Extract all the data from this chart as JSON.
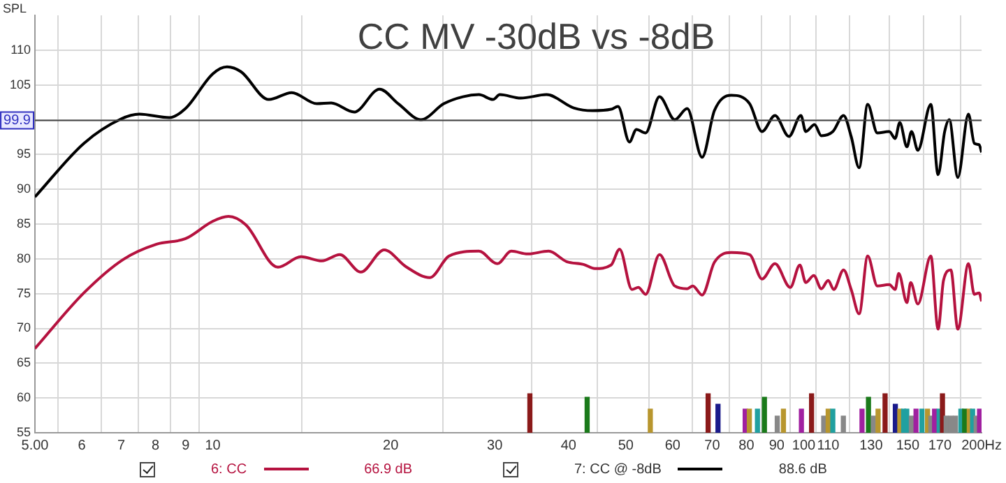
{
  "chart_data": {
    "type": "line",
    "title": "CC MV -30dB vs -8dB",
    "ylabel": "SPL",
    "log": "x",
    "grid": true,
    "legend": "bottom",
    "marker": "none",
    "line_style": "solid",
    "xlim": [
      5,
      200
    ],
    "ylim": [
      55,
      115
    ],
    "xticks": [
      {
        "value": 5,
        "label": "5.00"
      },
      6,
      7,
      8,
      9,
      10,
      20,
      30,
      40,
      50,
      60,
      70,
      80,
      90,
      100,
      110,
      130,
      150,
      170,
      {
        "value": 200,
        "label": "200Hz"
      }
    ],
    "yticks": [
      55,
      60,
      65,
      70,
      75,
      80,
      85,
      90,
      95,
      {
        "value": 100,
        "label": null
      },
      105,
      110
    ],
    "ref_lines": [
      {
        "axis": "y",
        "value": 99.9,
        "label": "99.9",
        "color": "#404040"
      }
    ],
    "annotations": [
      "66.9 dB",
      "88.6 dB"
    ],
    "series": [
      {
        "name": "6: CC",
        "color": "#b5123f",
        "x": [
          5.0,
          6.05,
          7.05,
          8.03,
          8.99,
          10.0,
          10.63,
          11.37,
          12.89,
          14.1,
          15.3,
          16.4,
          17.8,
          19.5,
          21.2,
          23.3,
          25.1,
          28.2,
          30.3,
          32.0,
          34.1,
          37.0,
          39.7,
          42.4,
          44.3,
          47.2,
          48.8,
          51.2,
          52.5,
          54.0,
          57.0,
          60.5,
          63.5,
          64.9,
          67.3,
          70.6,
          75.4,
          81.0,
          85.0,
          89.4,
          94.9,
          98.5,
          100.8,
          104.0,
          107.1,
          110.0,
          112.4,
          116.8,
          120.3,
          124.1,
          128.3,
          133.2,
          139.6,
          142.8,
          144.8,
          149.5,
          151.7,
          156.0,
          164.1,
          168.8,
          172.4,
          177.4,
          182.3,
          190.0,
          194.4,
          198.1,
          200.0
        ],
        "values": [
          67.1,
          75.1,
          79.9,
          82.1,
          82.9,
          85.4,
          86.1,
          84.9,
          78.8,
          80.3,
          79.7,
          80.6,
          78.1,
          81.3,
          78.9,
          77.3,
          80.4,
          81.1,
          79.3,
          81.1,
          80.7,
          81.1,
          79.6,
          79.2,
          78.6,
          79.1,
          81.4,
          75.6,
          75.9,
          74.9,
          80.6,
          76.1,
          75.7,
          76.1,
          74.8,
          79.5,
          80.9,
          80.6,
          77.1,
          79.3,
          75.9,
          79.1,
          76.6,
          77.6,
          75.7,
          76.9,
          75.6,
          78.4,
          75.6,
          72.1,
          80.4,
          76.1,
          76.3,
          75.6,
          77.9,
          73.7,
          76.6,
          73.5,
          80.4,
          69.9,
          76.9,
          78.4,
          69.9,
          79.3,
          74.9,
          75.1,
          73.9
        ]
      },
      {
        "name": "7: CC @ -8dB",
        "color": "#000000",
        "x": [
          5.0,
          6.05,
          6.99,
          7.51,
          8.44,
          8.99,
          10.0,
          10.57,
          11.16,
          12.44,
          13.6,
          15.0,
          15.86,
          17.35,
          19.15,
          20.6,
          22.5,
          24.6,
          26.5,
          28.2,
          29.8,
          30.6,
          33.2,
          36.7,
          40.8,
          43.9,
          47.2,
          48.5,
          50.7,
          52.1,
          54.0,
          57.0,
          60.5,
          63.5,
          67.3,
          70.6,
          75.4,
          81.0,
          85.0,
          89.4,
          94.4,
          98.9,
          100.8,
          104.3,
          107.1,
          112.0,
          116.8,
          120.3,
          124.1,
          128.3,
          133.2,
          139.6,
          142.8,
          145.4,
          149.5,
          152.2,
          156.0,
          164.1,
          168.8,
          173.2,
          176.3,
          182.3,
          190.0,
          194.4,
          198.1,
          200.0
        ],
        "values": [
          88.9,
          96.6,
          100.1,
          100.8,
          100.3,
          101.6,
          106.6,
          107.6,
          106.9,
          102.9,
          103.9,
          102.3,
          102.4,
          101.1,
          104.4,
          102.3,
          100.0,
          102.3,
          103.3,
          103.6,
          102.9,
          103.6,
          103.1,
          103.6,
          101.7,
          101.3,
          101.5,
          101.9,
          96.8,
          98.6,
          98.1,
          103.3,
          100.0,
          101.6,
          94.6,
          101.3,
          103.5,
          102.3,
          98.3,
          100.6,
          97.6,
          100.6,
          98.3,
          99.3,
          97.7,
          98.3,
          100.6,
          97.6,
          93.1,
          102.2,
          98.1,
          98.3,
          97.3,
          99.6,
          96.1,
          98.3,
          95.6,
          102.2,
          92.1,
          98.3,
          100.0,
          91.7,
          100.8,
          96.6,
          96.4,
          95.3
        ]
      },
      {
        "type": "bar",
        "x": [
          34.4,
          43.0,
          55.0,
          68.9,
          71.6,
          79.6,
          80.9,
          83.5,
          85.8,
          90.2,
          92.4,
          99.1,
          103.1,
          108.1,
          110.0,
          112.0,
          116.7,
          125.5,
          128.7,
          131.2,
          133.6,
          137.3,
          142.9,
          145.4,
          147.6,
          149.4,
          152.1,
          154.9,
          158.5,
          162.0,
          164.1,
          166.5,
          169.5,
          171.7,
          174.2,
          177.4,
          180.6,
          184.5,
          187.2,
          190.6,
          193.1,
          195.8,
          198.4
        ],
        "values": [
          60.6,
          60.1,
          58.4,
          60.6,
          59.1,
          58.4,
          58.4,
          58.4,
          60.1,
          57.4,
          58.4,
          58.4,
          60.6,
          57.4,
          58.4,
          58.4,
          57.4,
          58.4,
          60.1,
          57.4,
          58.4,
          60.6,
          59.1,
          58.4,
          58.4,
          58.4,
          57.4,
          58.4,
          58.4,
          58.4,
          57.4,
          58.4,
          58.4,
          60.6,
          57.4,
          57.4,
          57.4,
          58.4,
          58.4,
          58.4,
          58.4,
          57.4,
          58.4
        ],
        "colors": [
          "#8b1a1a",
          "#1a7a1a",
          "#b8962e",
          "#8b1a1a",
          "#1a1a8b",
          "#a020a0",
          "#b8962e",
          "#20a0a0",
          "#1a7a1a",
          "#888888",
          "#b8962e",
          "#a020a0",
          "#8b1a1a",
          "#888888",
          "#b8962e",
          "#20a0a0",
          "#888888",
          "#a020a0",
          "#1a7a1a",
          "#888888",
          "#b8962e",
          "#8b1a1a",
          "#1a1a8b",
          "#b8962e",
          "#20a0a0",
          "#20a0a0",
          "#888888",
          "#a020a0",
          "#20a0a0",
          "#b8962e",
          "#888888",
          "#a020a0",
          "#20a0a0",
          "#8b1a1a",
          "#888888",
          "#888888",
          "#888888",
          "#20a0a0",
          "#1a7a1a",
          "#b8962e",
          "#20a0a0",
          "#888888",
          "#a020a0"
        ]
      }
    ]
  }
}
